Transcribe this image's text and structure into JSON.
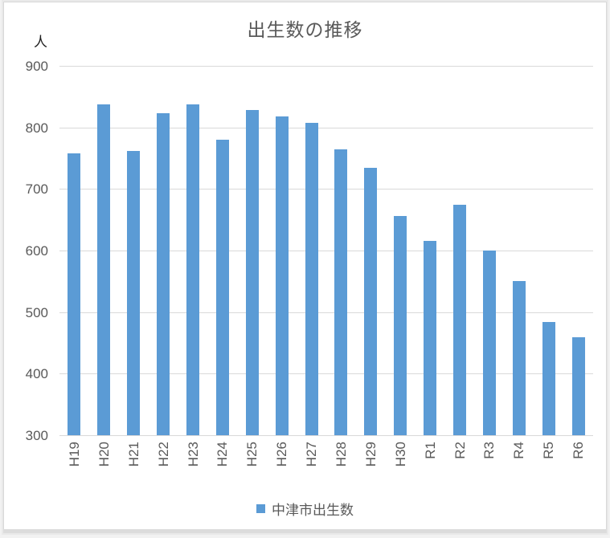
{
  "chart": {
    "title": "出生数の推移",
    "unit_label": "人",
    "legend_label": "中津市出生数",
    "colors": {
      "bar": "#5B9BD5",
      "gridline": "#D9D9D9",
      "axis_text": "#595959",
      "unit_text": "#1F1F1F",
      "title_text": "#595959"
    }
  },
  "chart_data": {
    "type": "bar",
    "title": "出生数の推移",
    "ylabel": "人",
    "series": [
      {
        "name": "中津市出生数",
        "values": [
          758,
          838,
          762,
          823,
          837,
          780,
          828,
          818,
          808,
          765,
          735,
          656,
          616,
          674,
          600,
          550,
          484,
          459
        ]
      }
    ],
    "categories": [
      "H19",
      "H20",
      "H21",
      "H22",
      "H23",
      "H24",
      "H25",
      "H26",
      "H27",
      "H28",
      "H29",
      "H30",
      "R1",
      "R2",
      "R3",
      "R4",
      "R5",
      "R6"
    ],
    "ylim": [
      300,
      900
    ],
    "ytick_step": 100,
    "yticks": [
      900,
      800,
      700,
      600,
      500,
      400,
      300
    ],
    "grid": true,
    "legend_position": "bottom",
    "bar_color": "#5B9BD5"
  }
}
